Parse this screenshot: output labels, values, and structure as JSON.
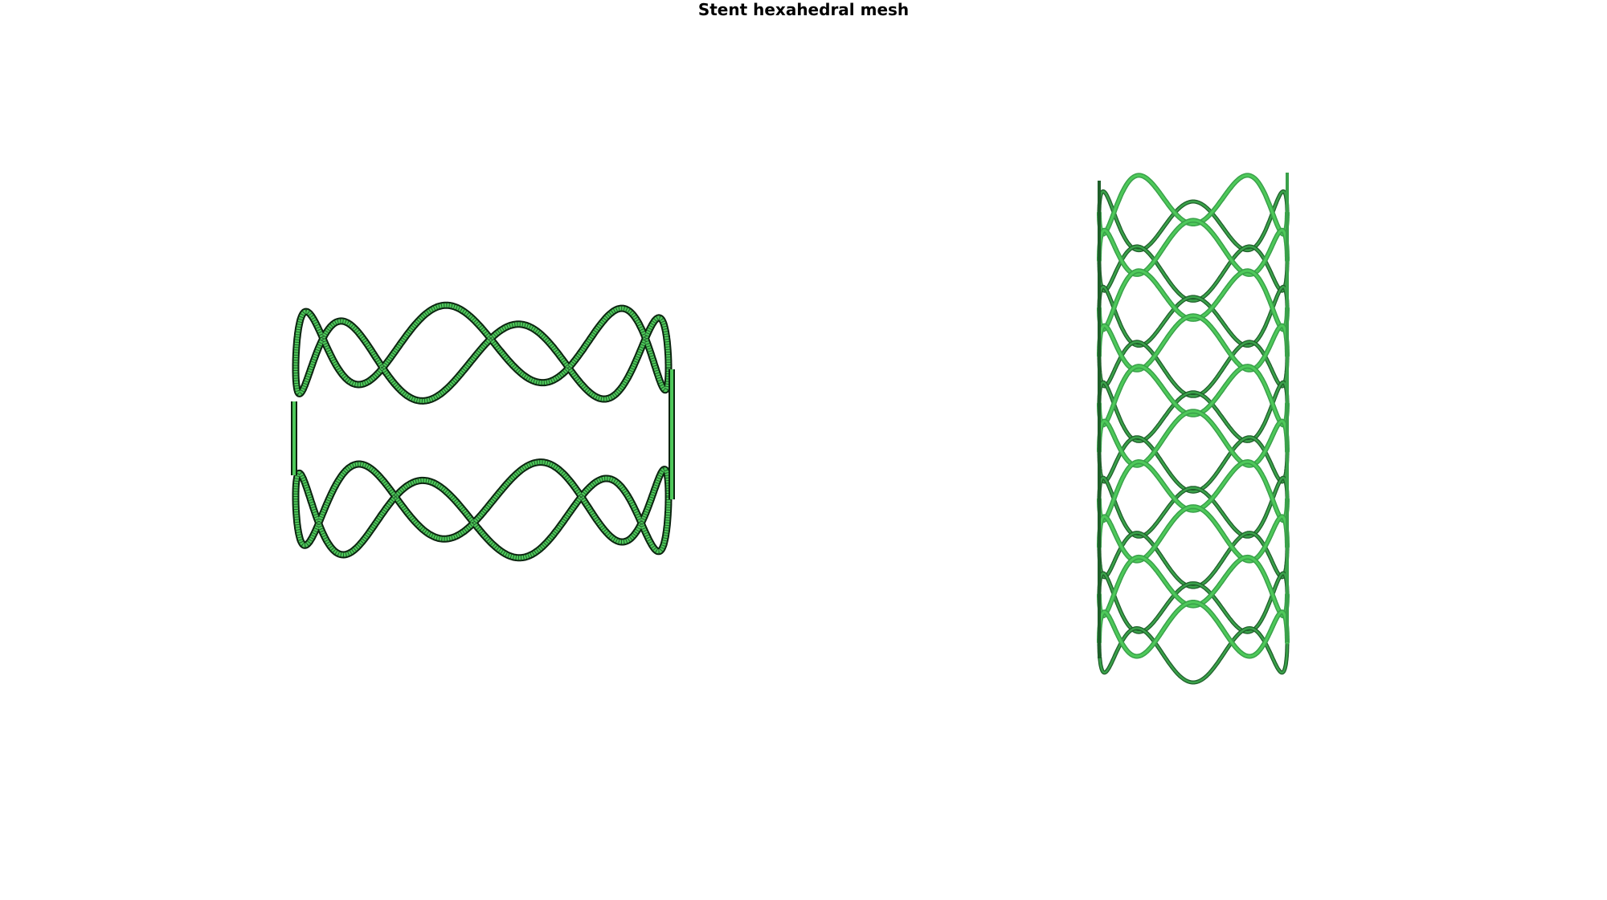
{
  "figure": {
    "title": "Stent hexahedral mesh"
  },
  "palette": {
    "mesh_light": "#4ec95a",
    "mesh_mid": "#3aa14a",
    "mesh_dark": "#1f5f2a",
    "mesh_edge": "#0c2410",
    "background": "#ffffff"
  },
  "panels": [
    {
      "name": "stent-ring-segment",
      "description_visible": "two wavy sinusoidal rings with hexahedral mesh lines"
    },
    {
      "name": "stent-full-cylinder",
      "description_visible": "full stent cylinder of stacked wavy rings"
    }
  ]
}
